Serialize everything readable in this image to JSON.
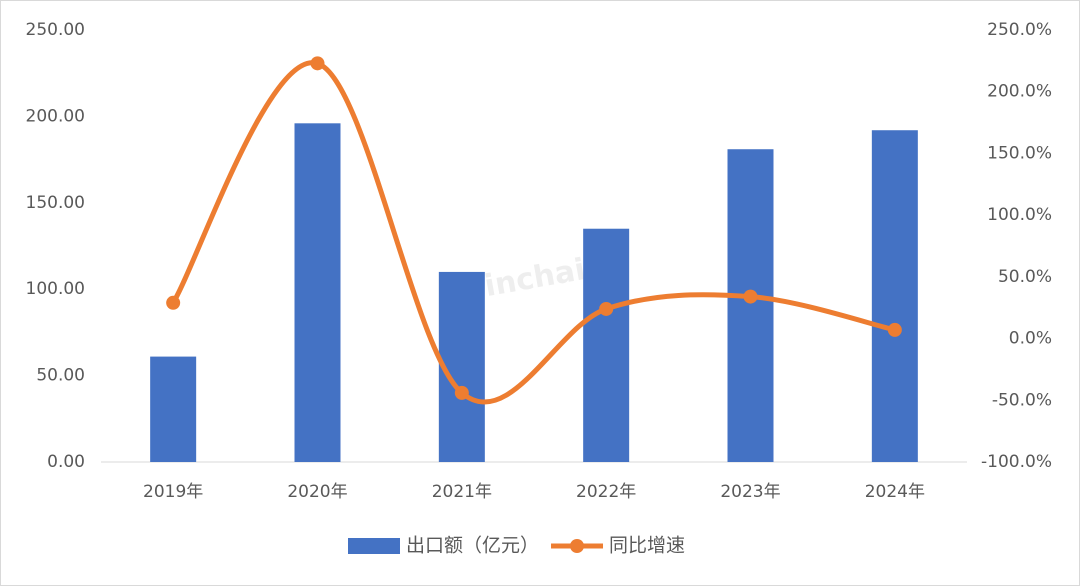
{
  "chart_data": {
    "type": "bar-line",
    "categories": [
      "2019年",
      "2020年",
      "2021年",
      "2022年",
      "2023年",
      "2024年"
    ],
    "series": [
      {
        "name": "出口额（亿元）",
        "color": "#4472c4",
        "type": "bar",
        "values": [
          61,
          196,
          110,
          135,
          181,
          192
        ]
      },
      {
        "name": "同比增速",
        "color": "#ed7d31",
        "type": "line",
        "axis": "y2",
        "smooth": true,
        "values": [
          29,
          223,
          -44,
          24,
          34,
          7
        ]
      }
    ],
    "ylim": [
      0,
      250
    ],
    "yticks": [
      {
        "value": 0,
        "label": "0.00"
      },
      {
        "value": 50,
        "label": "50.00"
      },
      {
        "value": 100,
        "label": "100.00"
      },
      {
        "value": 150,
        "label": "150.00"
      },
      {
        "value": 200,
        "label": "200.00"
      },
      {
        "value": 250,
        "label": "250.00"
      }
    ],
    "y2lim": [
      -100,
      250
    ],
    "y2ticks": [
      {
        "value": -100,
        "label": "-100.0%"
      },
      {
        "value": -50,
        "label": "-50.0%"
      },
      {
        "value": 0,
        "label": "0.0%"
      },
      {
        "value": 50,
        "label": "50.0%"
      },
      {
        "value": 100,
        "label": "100.0%"
      },
      {
        "value": 150,
        "label": "150.0%"
      },
      {
        "value": 200,
        "label": "200.0%"
      },
      {
        "value": 250,
        "label": "250.0%"
      }
    ],
    "grid": false,
    "legend": "bottom",
    "watermark": "Joinchain"
  }
}
